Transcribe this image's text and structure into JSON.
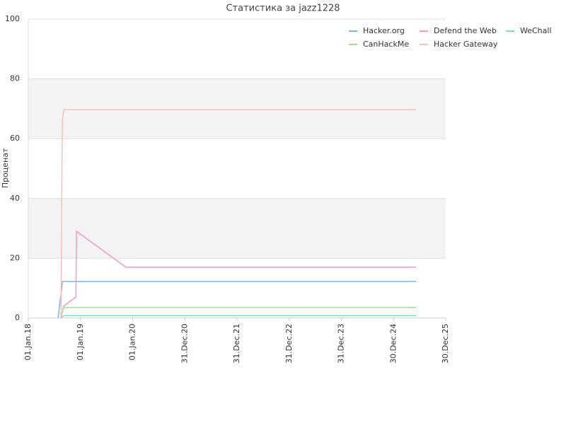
{
  "chart_data": {
    "type": "line",
    "title": "Статистика за jazz1228",
    "y_label": "Проценат",
    "xlim": [
      "2018-01-01",
      "2025-12-30"
    ],
    "xticks": [
      {
        "value": "2018-01-01",
        "label": "01.Jan.18"
      },
      {
        "value": "2019-01-01",
        "label": "01.Jan.19"
      },
      {
        "value": "2020-01-01",
        "label": "01.Jan.20"
      },
      {
        "value": "2020-12-31",
        "label": "31.Dec.20"
      },
      {
        "value": "2021-12-31",
        "label": "31.Dec.21"
      },
      {
        "value": "2022-12-31",
        "label": "31.Dec.22"
      },
      {
        "value": "2023-12-31",
        "label": "31.Dec.23"
      },
      {
        "value": "2024-12-30",
        "label": "30.Dec.24"
      },
      {
        "value": "2025-12-30",
        "label": "30.Dec.25"
      }
    ],
    "ylim": [
      0,
      100
    ],
    "yticks": [
      0,
      20,
      40,
      60,
      80,
      100
    ],
    "grid": true,
    "bands": true,
    "legend": "top-right",
    "series": [
      {
        "name": "Hacker.org",
        "color": "#7cb5ec",
        "x": [
          "2018-07-28",
          "2018-08-05",
          "2018-08-12",
          "2018-08-20",
          "2018-08-27",
          "2025-06-06"
        ],
        "values": [
          0,
          3,
          6,
          8.5,
          12.2,
          12.2
        ]
      },
      {
        "name": "Defend the Web",
        "color": "#f29ac4",
        "x": [
          "2018-08-17",
          "2018-09-06",
          "2018-09-20",
          "2018-11-30",
          "2018-12-04",
          "2019-11-15",
          "2025-06-06"
        ],
        "values": [
          0,
          4,
          4.5,
          7,
          29,
          17,
          17
        ]
      },
      {
        "name": "WeChall",
        "color": "#7ddcc0",
        "x": [
          "2018-08-17",
          "2018-09-06",
          "2025-06-06"
        ],
        "values": [
          0,
          0.8,
          0.8
        ]
      },
      {
        "name": "CanHackMe",
        "color": "#90ed7d",
        "x": [
          "2018-08-17",
          "2018-09-06",
          "2025-06-06"
        ],
        "values": [
          0.5,
          3.5,
          3.5
        ]
      },
      {
        "name": "Hacker Gateway",
        "color": "#f7c0c0",
        "x": [
          "2018-08-17",
          "2018-08-27",
          "2018-09-06",
          "2025-06-06"
        ],
        "values": [
          0,
          66,
          69.7,
          69.7
        ]
      }
    ]
  }
}
